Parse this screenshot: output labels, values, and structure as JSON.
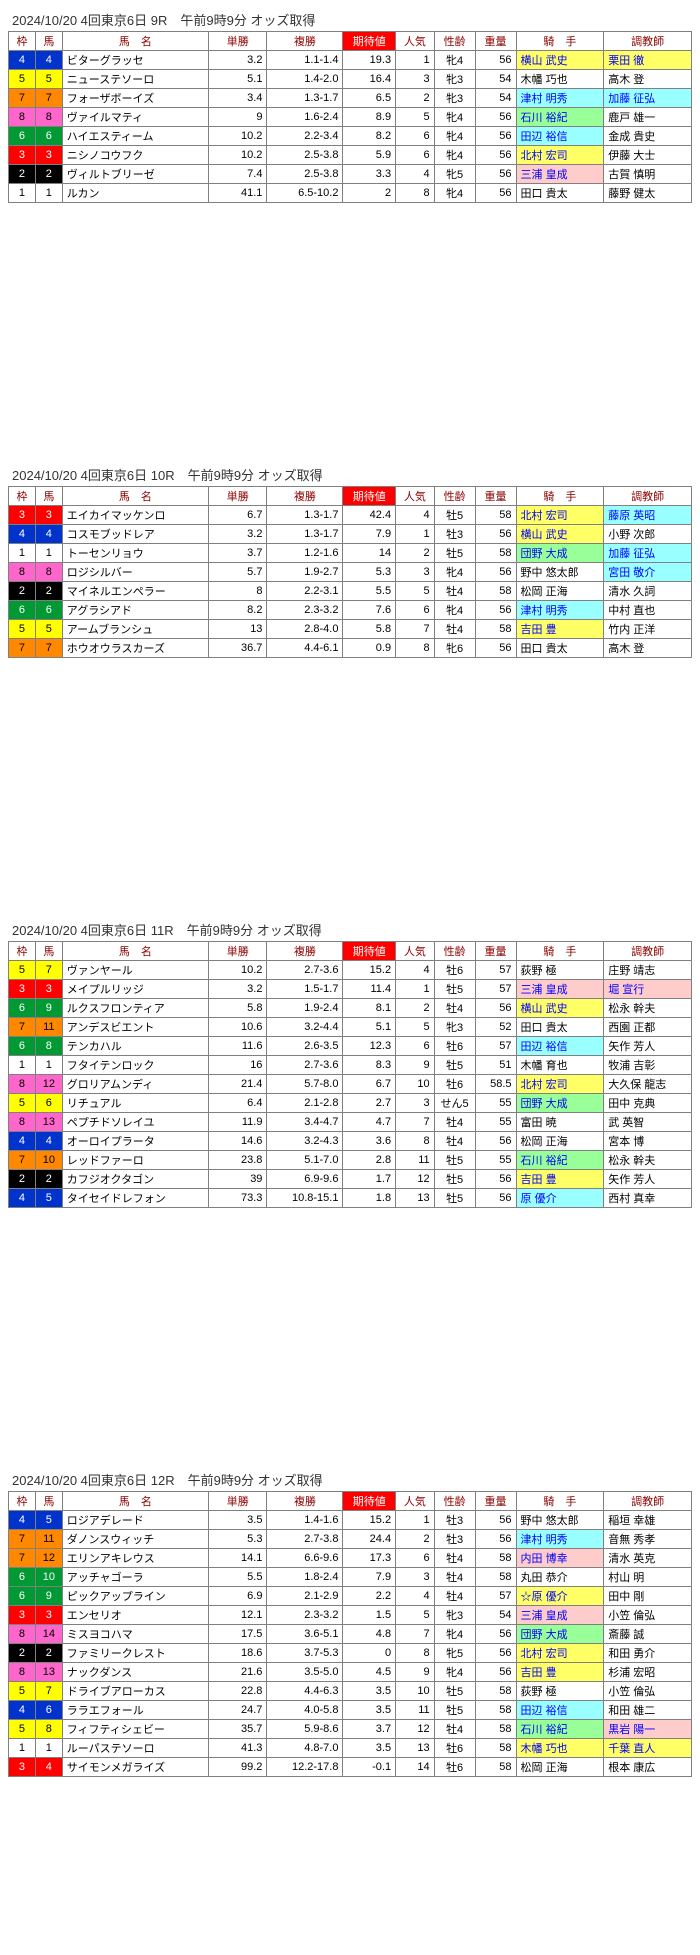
{
  "frame_colors": {
    "1": {
      "bg": "#ffffff",
      "fg": "#000000"
    },
    "2": {
      "bg": "#000000",
      "fg": "#ffffff"
    },
    "3": {
      "bg": "#ff0000",
      "fg": "#ffffff"
    },
    "4": {
      "bg": "#0033cc",
      "fg": "#ffffff"
    },
    "5": {
      "bg": "#ffff00",
      "fg": "#000000"
    },
    "6": {
      "bg": "#009933",
      "fg": "#ffffff"
    },
    "7": {
      "bg": "#ff8800",
      "fg": "#000000"
    },
    "8": {
      "bg": "#ff66cc",
      "fg": "#000000"
    }
  },
  "headers": {
    "waku": "枠",
    "uma": "馬",
    "name": "馬　名",
    "tan": "単勝",
    "fuku": "複勝",
    "kitai": "期待値",
    "ninki": "人気",
    "sei": "性齢",
    "wt": "重量",
    "jockey": "騎　手",
    "trainer": "調教師"
  },
  "races": [
    {
      "title": "2024/10/20  4回東京6日  9R　午前9時9分 オッズ取得",
      "rows": [
        {
          "waku": 4,
          "uma": 4,
          "name": "ビターグラッセ",
          "tan": "3.2",
          "fuku": "1.1-1.4",
          "kitai": "19.3",
          "ninki": 1,
          "sei": "牝4",
          "wt": 56,
          "jockey": "横山 武史",
          "jhl": "hl-yellow",
          "trainer": "栗田 徹",
          "thl": "hl-yellow"
        },
        {
          "waku": 5,
          "uma": 5,
          "name": "ニューステソーロ",
          "tan": "5.1",
          "fuku": "1.4-2.0",
          "kitai": "16.4",
          "ninki": 3,
          "sei": "牝3",
          "wt": 54,
          "jockey": "木幡 巧也",
          "jhl": "",
          "trainer": "高木 登",
          "thl": ""
        },
        {
          "waku": 7,
          "uma": 7,
          "name": "フォーザボーイズ",
          "tan": "3.4",
          "fuku": "1.3-1.7",
          "kitai": "6.5",
          "ninki": 2,
          "sei": "牝3",
          "wt": 54,
          "jockey": "津村 明秀",
          "jhl": "hl-cyan",
          "trainer": "加藤 征弘",
          "thl": "hl-cyan"
        },
        {
          "waku": 8,
          "uma": 8,
          "name": "ヴァイルマティ",
          "tan": "9",
          "fuku": "1.6-2.4",
          "kitai": "8.9",
          "ninki": 5,
          "sei": "牝4",
          "wt": 56,
          "jockey": "石川 裕紀",
          "jhl": "hl-lime",
          "trainer": "鹿戸 雄一",
          "thl": ""
        },
        {
          "waku": 6,
          "uma": 6,
          "name": "ハイエスティーム",
          "tan": "10.2",
          "fuku": "2.2-3.4",
          "kitai": "8.2",
          "ninki": 6,
          "sei": "牝4",
          "wt": 56,
          "jockey": "田辺 裕信",
          "jhl": "hl-cyan",
          "trainer": "金成 貴史",
          "thl": ""
        },
        {
          "waku": 3,
          "uma": 3,
          "name": "ニシノコウフク",
          "tan": "10.2",
          "fuku": "2.5-3.8",
          "kitai": "5.9",
          "ninki": 6,
          "sei": "牝4",
          "wt": 56,
          "jockey": "北村 宏司",
          "jhl": "hl-yellow",
          "trainer": "伊藤 大士",
          "thl": ""
        },
        {
          "waku": 2,
          "uma": 2,
          "name": "ヴィルトブリーゼ",
          "tan": "7.4",
          "fuku": "2.5-3.8",
          "kitai": "3.3",
          "ninki": 4,
          "sei": "牝5",
          "wt": 56,
          "jockey": "三浦 皇成",
          "jhl": "hl-pink",
          "trainer": "古賀 慎明",
          "thl": ""
        },
        {
          "waku": 1,
          "uma": 1,
          "name": "ルカン",
          "tan": "41.1",
          "fuku": "6.5-10.2",
          "kitai": "2",
          "ninki": 8,
          "sei": "牝4",
          "wt": 56,
          "jockey": "田口 貴太",
          "jhl": "",
          "trainer": "藤野 健太",
          "thl": ""
        }
      ]
    },
    {
      "title": "2024/10/20  4回東京6日  10R　午前9時9分 オッズ取得",
      "rows": [
        {
          "waku": 3,
          "uma": 3,
          "name": "エイカイマッケンロ",
          "tan": "6.7",
          "fuku": "1.3-1.7",
          "kitai": "42.4",
          "ninki": 4,
          "sei": "牡5",
          "wt": 58,
          "jockey": "北村 宏司",
          "jhl": "hl-yellow",
          "trainer": "藤原 英昭",
          "thl": "hl-cyan"
        },
        {
          "waku": 4,
          "uma": 4,
          "name": "コスモブッドレア",
          "tan": "3.2",
          "fuku": "1.3-1.7",
          "kitai": "7.9",
          "ninki": 1,
          "sei": "牡3",
          "wt": 56,
          "jockey": "横山 武史",
          "jhl": "hl-yellow",
          "trainer": "小野 次郎",
          "thl": ""
        },
        {
          "waku": 1,
          "uma": 1,
          "name": "トーセンリョウ",
          "tan": "3.7",
          "fuku": "1.2-1.6",
          "kitai": "14",
          "ninki": 2,
          "sei": "牡5",
          "wt": 58,
          "jockey": "団野 大成",
          "jhl": "hl-lime",
          "trainer": "加藤 征弘",
          "thl": "hl-cyan"
        },
        {
          "waku": 8,
          "uma": 8,
          "name": "ロジシルバー",
          "tan": "5.7",
          "fuku": "1.9-2.7",
          "kitai": "5.3",
          "ninki": 3,
          "sei": "牝4",
          "wt": 56,
          "jockey": "野中 悠太郎",
          "jhl": "",
          "trainer": "宮田 敬介",
          "thl": "hl-cyan"
        },
        {
          "waku": 2,
          "uma": 2,
          "name": "マイネルエンペラー",
          "tan": "8",
          "fuku": "2.2-3.1",
          "kitai": "5.5",
          "ninki": 5,
          "sei": "牡4",
          "wt": 58,
          "jockey": "松岡 正海",
          "jhl": "",
          "trainer": "清水 久詞",
          "thl": ""
        },
        {
          "waku": 6,
          "uma": 6,
          "name": "アグラシアド",
          "tan": "8.2",
          "fuku": "2.3-3.2",
          "kitai": "7.6",
          "ninki": 6,
          "sei": "牝4",
          "wt": 56,
          "jockey": "津村 明秀",
          "jhl": "hl-cyan",
          "trainer": "中村 直也",
          "thl": ""
        },
        {
          "waku": 5,
          "uma": 5,
          "name": "アームブランシュ",
          "tan": "13",
          "fuku": "2.8-4.0",
          "kitai": "5.8",
          "ninki": 7,
          "sei": "牡4",
          "wt": 58,
          "jockey": "吉田 豊",
          "jhl": "hl-yellow",
          "trainer": "竹内 正洋",
          "thl": ""
        },
        {
          "waku": 7,
          "uma": 7,
          "name": "ホウオウラスカーズ",
          "tan": "36.7",
          "fuku": "4.4-6.1",
          "kitai": "0.9",
          "ninki": 8,
          "sei": "牝6",
          "wt": 56,
          "jockey": "田口 貴太",
          "jhl": "",
          "trainer": "高木 登",
          "thl": ""
        }
      ]
    },
    {
      "title": "2024/10/20  4回東京6日  11R　午前9時9分 オッズ取得",
      "rows": [
        {
          "waku": 5,
          "uma": 7,
          "name": "ヴァンヤール",
          "tan": "10.2",
          "fuku": "2.7-3.6",
          "kitai": "15.2",
          "ninki": 4,
          "sei": "牡6",
          "wt": 57,
          "jockey": "荻野 極",
          "jhl": "",
          "trainer": "庄野 靖志",
          "thl": ""
        },
        {
          "waku": 3,
          "uma": 3,
          "name": "メイプルリッジ",
          "tan": "3.2",
          "fuku": "1.5-1.7",
          "kitai": "11.4",
          "ninki": 1,
          "sei": "牡5",
          "wt": 57,
          "jockey": "三浦 皇成",
          "jhl": "hl-pink",
          "trainer": "堀 宣行",
          "thl": "hl-pink"
        },
        {
          "waku": 6,
          "uma": 9,
          "name": "ルクスフロンティア",
          "tan": "5.8",
          "fuku": "1.9-2.4",
          "kitai": "8.1",
          "ninki": 2,
          "sei": "牡4",
          "wt": 56,
          "jockey": "横山 武史",
          "jhl": "hl-yellow",
          "trainer": "松永 幹夫",
          "thl": ""
        },
        {
          "waku": 7,
          "uma": 11,
          "name": "アンデスビエント",
          "tan": "10.6",
          "fuku": "3.2-4.4",
          "kitai": "5.1",
          "ninki": 5,
          "sei": "牝3",
          "wt": 52,
          "jockey": "田口 貴太",
          "jhl": "",
          "trainer": "西園 正都",
          "thl": ""
        },
        {
          "waku": 6,
          "uma": 8,
          "name": "テンカハル",
          "tan": "11.6",
          "fuku": "2.6-3.5",
          "kitai": "12.3",
          "ninki": 6,
          "sei": "牡6",
          "wt": 57,
          "jockey": "田辺 裕信",
          "jhl": "hl-cyan",
          "trainer": "矢作 芳人",
          "thl": ""
        },
        {
          "waku": 1,
          "uma": 1,
          "name": "フタイテンロック",
          "tan": "16",
          "fuku": "2.7-3.6",
          "kitai": "8.3",
          "ninki": 9,
          "sei": "牡5",
          "wt": 51,
          "jockey": "木幡 育也",
          "jhl": "",
          "trainer": "牧浦 吉彰",
          "thl": ""
        },
        {
          "waku": 8,
          "uma": 12,
          "name": "グロリアムンディ",
          "tan": "21.4",
          "fuku": "5.7-8.0",
          "kitai": "6.7",
          "ninki": 10,
          "sei": "牡6",
          "wt": 58.5,
          "jockey": "北村 宏司",
          "jhl": "hl-yellow",
          "trainer": "大久保 龍志",
          "thl": ""
        },
        {
          "waku": 5,
          "uma": 6,
          "name": "リチュアル",
          "tan": "6.4",
          "fuku": "2.1-2.8",
          "kitai": "2.7",
          "ninki": 3,
          "sei": "せん5",
          "wt": 55,
          "jockey": "団野 大成",
          "jhl": "hl-lime",
          "trainer": "田中 克典",
          "thl": ""
        },
        {
          "waku": 8,
          "uma": 13,
          "name": "ペプチドソレイユ",
          "tan": "11.9",
          "fuku": "3.4-4.7",
          "kitai": "4.7",
          "ninki": 7,
          "sei": "牡4",
          "wt": 55,
          "jockey": "富田 暁",
          "jhl": "",
          "trainer": "武 英智",
          "thl": ""
        },
        {
          "waku": 4,
          "uma": 4,
          "name": "オーロイプラータ",
          "tan": "14.6",
          "fuku": "3.2-4.3",
          "kitai": "3.6",
          "ninki": 8,
          "sei": "牡4",
          "wt": 56,
          "jockey": "松岡 正海",
          "jhl": "",
          "trainer": "宮本 博",
          "thl": ""
        },
        {
          "waku": 7,
          "uma": 10,
          "name": "レッドファーロ",
          "tan": "23.8",
          "fuku": "5.1-7.0",
          "kitai": "2.8",
          "ninki": 11,
          "sei": "牡5",
          "wt": 55,
          "jockey": "石川 裕紀",
          "jhl": "hl-lime",
          "trainer": "松永 幹夫",
          "thl": ""
        },
        {
          "waku": 2,
          "uma": 2,
          "name": "カフジオクタゴン",
          "tan": "39",
          "fuku": "6.9-9.6",
          "kitai": "1.7",
          "ninki": 12,
          "sei": "牡5",
          "wt": 56,
          "jockey": "吉田 豊",
          "jhl": "hl-yellow",
          "trainer": "矢作 芳人",
          "thl": ""
        },
        {
          "waku": 4,
          "uma": 5,
          "name": "タイセイドレフォン",
          "tan": "73.3",
          "fuku": "10.8-15.1",
          "kitai": "1.8",
          "ninki": 13,
          "sei": "牡5",
          "wt": 56,
          "jockey": "原 優介",
          "jhl": "hl-cyan",
          "trainer": "西村 真幸",
          "thl": ""
        }
      ]
    },
    {
      "title": "2024/10/20  4回東京6日  12R　午前9時9分 オッズ取得",
      "rows": [
        {
          "waku": 4,
          "uma": 5,
          "name": "ロジアデレード",
          "tan": "3.5",
          "fuku": "1.4-1.6",
          "kitai": "15.2",
          "ninki": 1,
          "sei": "牡3",
          "wt": 56,
          "jockey": "野中 悠太郎",
          "jhl": "",
          "trainer": "稲垣 幸雄",
          "thl": ""
        },
        {
          "waku": 7,
          "uma": 11,
          "name": "ダノンスウィッチ",
          "tan": "5.3",
          "fuku": "2.7-3.8",
          "kitai": "24.4",
          "ninki": 2,
          "sei": "牡3",
          "wt": 56,
          "jockey": "津村 明秀",
          "jhl": "hl-cyan",
          "trainer": "音無 秀孝",
          "thl": ""
        },
        {
          "waku": 7,
          "uma": 12,
          "name": "エリンアキレウス",
          "tan": "14.1",
          "fuku": "6.6-9.6",
          "kitai": "17.3",
          "ninki": 6,
          "sei": "牡4",
          "wt": 58,
          "jockey": "内田 博幸",
          "jhl": "hl-pink",
          "trainer": "清水 英克",
          "thl": ""
        },
        {
          "waku": 6,
          "uma": 10,
          "name": "アッチャゴーラ",
          "tan": "5.5",
          "fuku": "1.8-2.4",
          "kitai": "7.9",
          "ninki": 3,
          "sei": "牡4",
          "wt": 58,
          "jockey": "丸田 恭介",
          "jhl": "",
          "trainer": "村山 明",
          "thl": ""
        },
        {
          "waku": 6,
          "uma": 9,
          "name": "ピックアップライン",
          "tan": "6.9",
          "fuku": "2.1-2.9",
          "kitai": "2.2",
          "ninki": 4,
          "sei": "牡4",
          "wt": 57,
          "jockey": "☆原 優介",
          "jhl": "hl-yellow",
          "trainer": "田中 剛",
          "thl": ""
        },
        {
          "waku": 3,
          "uma": 3,
          "name": "エンセリオ",
          "tan": "12.1",
          "fuku": "2.3-3.2",
          "kitai": "1.5",
          "ninki": 5,
          "sei": "牝3",
          "wt": 54,
          "jockey": "三浦 皇成",
          "jhl": "hl-pink",
          "trainer": "小笠 倫弘",
          "thl": ""
        },
        {
          "waku": 8,
          "uma": 14,
          "name": "ミスヨコハマ",
          "tan": "17.5",
          "fuku": "3.6-5.1",
          "kitai": "4.8",
          "ninki": 7,
          "sei": "牝4",
          "wt": 56,
          "jockey": "団野 大成",
          "jhl": "hl-lime",
          "trainer": "斎藤 誠",
          "thl": ""
        },
        {
          "waku": 2,
          "uma": 2,
          "name": "ファミリークレスト",
          "tan": "18.6",
          "fuku": "3.7-5.3",
          "kitai": "0",
          "ninki": 8,
          "sei": "牝5",
          "wt": 56,
          "jockey": "北村 宏司",
          "jhl": "hl-yellow",
          "trainer": "和田 勇介",
          "thl": ""
        },
        {
          "waku": 8,
          "uma": 13,
          "name": "ナックダンス",
          "tan": "21.6",
          "fuku": "3.5-5.0",
          "kitai": "4.5",
          "ninki": 9,
          "sei": "牝4",
          "wt": 56,
          "jockey": "吉田 豊",
          "jhl": "hl-yellow",
          "trainer": "杉浦 宏昭",
          "thl": ""
        },
        {
          "waku": 5,
          "uma": 7,
          "name": "ドライブアローカス",
          "tan": "22.8",
          "fuku": "4.4-6.3",
          "kitai": "3.5",
          "ninki": 10,
          "sei": "牡5",
          "wt": 58,
          "jockey": "荻野 極",
          "jhl": "",
          "trainer": "小笠 倫弘",
          "thl": ""
        },
        {
          "waku": 4,
          "uma": 6,
          "name": "ララエフォール",
          "tan": "24.7",
          "fuku": "4.0-5.8",
          "kitai": "3.5",
          "ninki": 11,
          "sei": "牡5",
          "wt": 58,
          "jockey": "田辺 裕信",
          "jhl": "hl-cyan",
          "trainer": "和田 雄二",
          "thl": ""
        },
        {
          "waku": 5,
          "uma": 8,
          "name": "フィフティシェビー",
          "tan": "35.7",
          "fuku": "5.9-8.6",
          "kitai": "3.7",
          "ninki": 12,
          "sei": "牡4",
          "wt": 58,
          "jockey": "石川 裕紀",
          "jhl": "hl-lime",
          "trainer": "黒岩 陽一",
          "thl": "hl-pink"
        },
        {
          "waku": 1,
          "uma": 1,
          "name": "ルーパステソーロ",
          "tan": "41.3",
          "fuku": "4.8-7.0",
          "kitai": "3.5",
          "ninki": 13,
          "sei": "牡6",
          "wt": 58,
          "jockey": "木幡 巧也",
          "jhl": "hl-yellow",
          "trainer": "千葉 直人",
          "thl": "hl-yellow"
        },
        {
          "waku": 3,
          "uma": 4,
          "name": "サイモンメガライズ",
          "tan": "99.2",
          "fuku": "12.2-17.8",
          "kitai": "-0.1",
          "ninki": 14,
          "sei": "牡6",
          "wt": 58,
          "jockey": "松岡 正海",
          "jhl": "",
          "trainer": "根本 康広",
          "thl": ""
        }
      ]
    }
  ]
}
